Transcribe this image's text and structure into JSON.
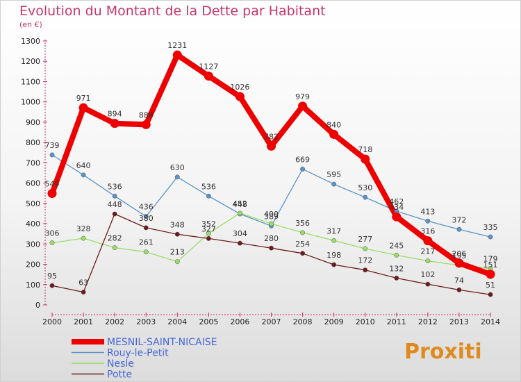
{
  "chart_data": {
    "type": "line",
    "title": "Evolution du Montant de la Dette par Habitant",
    "subtitle": "(en €)",
    "x": [
      "2000",
      "2001",
      "2002",
      "2003",
      "2004",
      "2005",
      "2006",
      "2007",
      "2008",
      "2009",
      "2010",
      "2011",
      "2012",
      "2013",
      "2014"
    ],
    "ylim": [
      0,
      1300
    ],
    "yticks": [
      0,
      100,
      200,
      300,
      400,
      500,
      600,
      700,
      800,
      900,
      1000,
      1100,
      1200,
      1300
    ],
    "grid": false,
    "legend_position": "bottom-left",
    "series": [
      {
        "name": "MESNIL-SAINT-NICAISE",
        "color": "#ee0000",
        "values": [
          549,
          971,
          894,
          888,
          1231,
          1127,
          1026,
          782,
          979,
          840,
          718,
          434,
          316,
          206,
          151
        ]
      },
      {
        "name": "Rouy-le-Petit",
        "color": "#5b93c8",
        "values": [
          739,
          640,
          536,
          436,
          630,
          536,
          448,
          389,
          669,
          595,
          530,
          462,
          413,
          372,
          335
        ]
      },
      {
        "name": "Nesle",
        "color": "#99dd66",
        "values": [
          306,
          328,
          282,
          261,
          213,
          352,
          452,
          400,
          356,
          317,
          277,
          245,
          217,
          195,
          179
        ]
      },
      {
        "name": "Potte",
        "color": "#6b1b1b",
        "values": [
          95,
          63,
          448,
          380,
          348,
          327,
          304,
          280,
          254,
          198,
          172,
          132,
          102,
          74,
          51
        ]
      }
    ]
  },
  "logo": {
    "text": "Proxiti"
  }
}
